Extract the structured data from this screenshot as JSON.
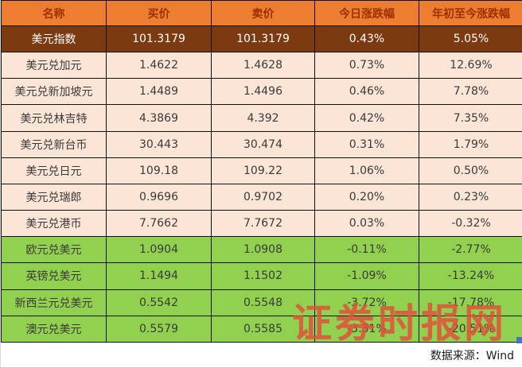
{
  "chart_data": {
    "type": "table",
    "columns": [
      "名称",
      "买价",
      "卖价",
      "今日涨跌幅",
      "年初至今涨跌幅"
    ],
    "rows": [
      {
        "name": "美元指数",
        "buy": "101.3179",
        "sell": "101.3179",
        "today_change": "0.43%",
        "ytd_change": "5.05%",
        "tone": "dark-highlight"
      },
      {
        "name": "美元兑加元",
        "buy": "1.4622",
        "sell": "1.4628",
        "today_change": "0.73%",
        "ytd_change": "12.69%",
        "tone": "peach"
      },
      {
        "name": "美元兑新加坡元",
        "buy": "1.4489",
        "sell": "1.4496",
        "today_change": "0.46%",
        "ytd_change": "7.78%",
        "tone": "peach"
      },
      {
        "name": "美元兑林吉特",
        "buy": "4.3869",
        "sell": "4.392",
        "today_change": "0.42%",
        "ytd_change": "7.35%",
        "tone": "peach"
      },
      {
        "name": "美元兑新台币",
        "buy": "30.443",
        "sell": "30.474",
        "today_change": "0.31%",
        "ytd_change": "1.79%",
        "tone": "peach"
      },
      {
        "name": "美元兑日元",
        "buy": "109.18",
        "sell": "109.22",
        "today_change": "1.06%",
        "ytd_change": "0.50%",
        "tone": "peach"
      },
      {
        "name": "美元兑瑞郎",
        "buy": "0.9696",
        "sell": "0.9702",
        "today_change": "0.20%",
        "ytd_change": "0.23%",
        "tone": "peach"
      },
      {
        "name": "美元兑港币",
        "buy": "7.7662",
        "sell": "7.7672",
        "today_change": "0.03%",
        "ytd_change": "-0.32%",
        "tone": "peach"
      },
      {
        "name": "欧元兑美元",
        "buy": "1.0904",
        "sell": "1.0908",
        "today_change": "-0.11%",
        "ytd_change": "-2.77%",
        "tone": "green"
      },
      {
        "name": "英镑兑美元",
        "buy": "1.1494",
        "sell": "1.1502",
        "today_change": "-1.09%",
        "ytd_change": "-13.24%",
        "tone": "green"
      },
      {
        "name": "新西兰元兑美元",
        "buy": "0.5542",
        "sell": "0.5548",
        "today_change": "-3.72%",
        "ytd_change": "-17.78%",
        "tone": "green"
      },
      {
        "name": "澳元兑美元",
        "buy": "0.5579",
        "sell": "0.5585",
        "today_change": "-3.31%",
        "ytd_change": "-20.51%",
        "tone": "green"
      }
    ],
    "title": "",
    "legend": [],
    "layout_hints": {
      "grid": "on",
      "header_position": "top"
    }
  },
  "footer": {
    "source_text": "数据来源：Wind"
  },
  "watermark": {
    "text": "证券时报网"
  },
  "colors": {
    "header_bg": "#ED7D31",
    "header_text": "#9C3000",
    "highlight_row_bg": "#7C3A10",
    "highlight_row_text": "#FFFFFF",
    "usd_pair_row_bg": "#FBE5D6",
    "cross_pair_row_bg": "#92D050",
    "grid_line": "#111111",
    "watermark_red": "#E0503C",
    "corner_marker_blue": "#4472C4"
  }
}
